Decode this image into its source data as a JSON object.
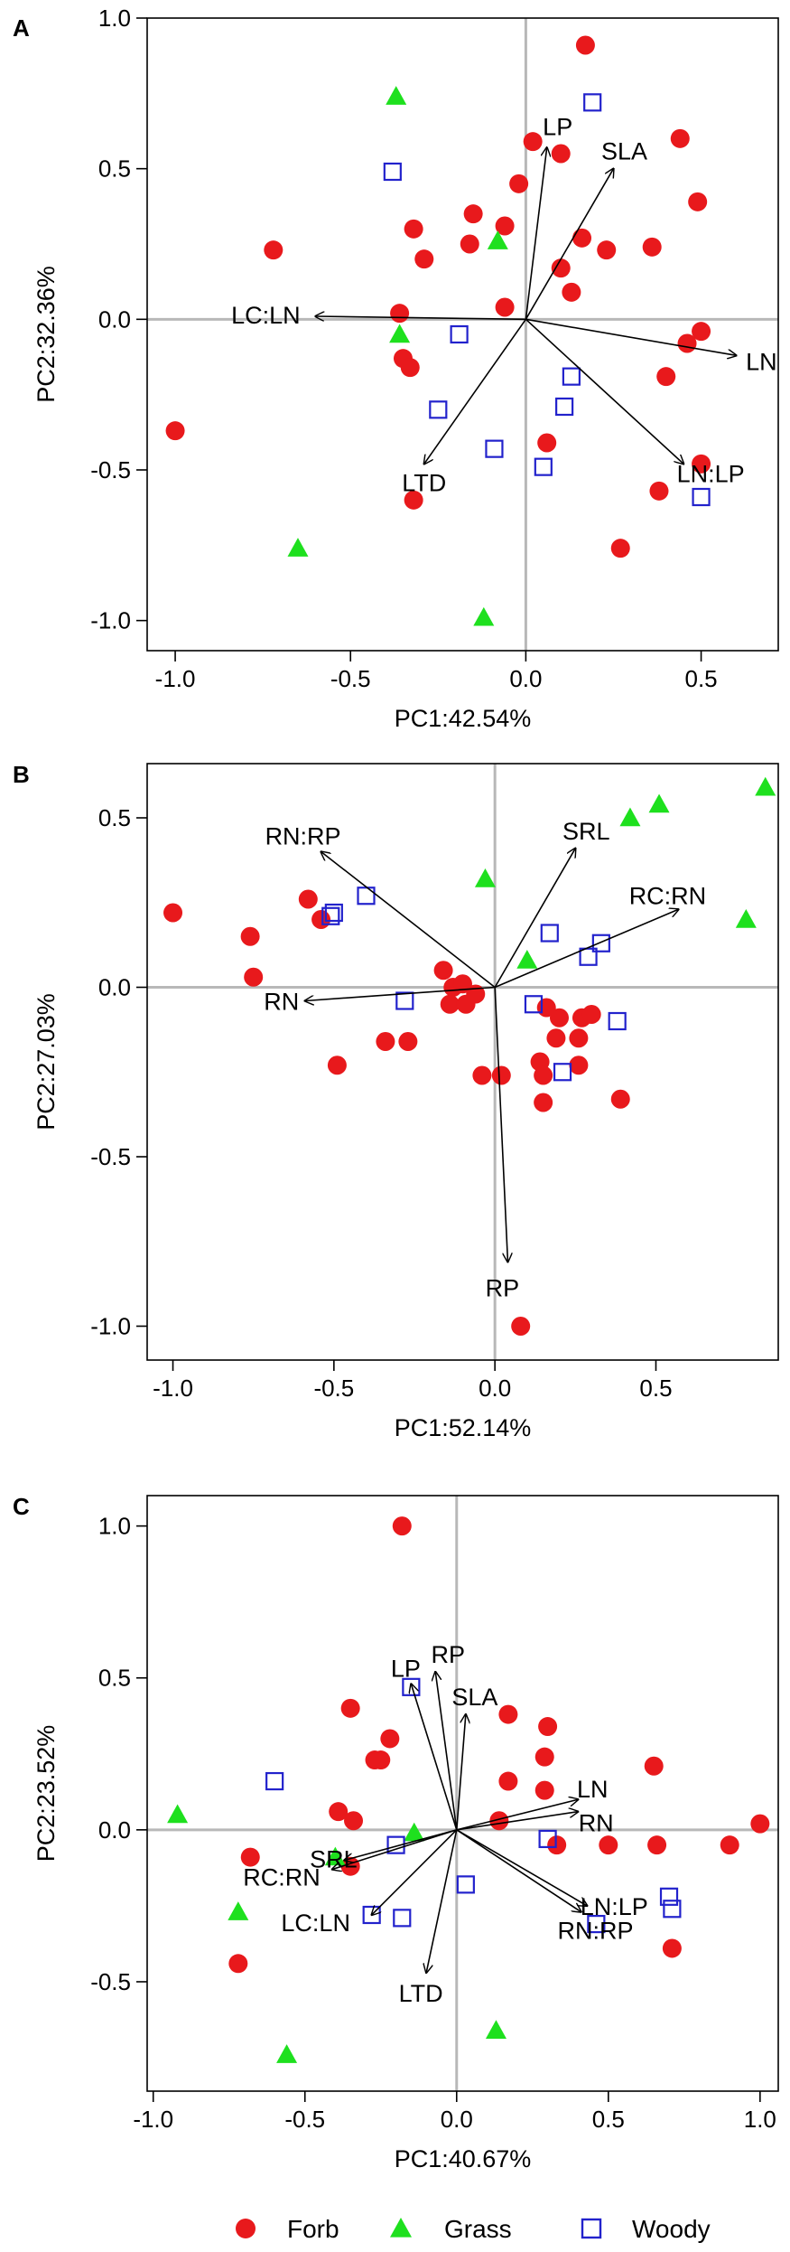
{
  "colors": {
    "forb": "#e8191c",
    "grass": "#1ee01e",
    "woody": "#2222cc",
    "refline": "#b8b8b8",
    "axis": "#000000"
  },
  "legend": [
    {
      "key": "forb",
      "label": "Forb",
      "marker": "circle"
    },
    {
      "key": "grass",
      "label": "Grass",
      "marker": "triangle"
    },
    {
      "key": "woody",
      "label": "Woody",
      "marker": "square"
    }
  ],
  "chart_data": [
    {
      "type": "scatter",
      "panel_label": "A",
      "title": "",
      "xlabel": "PC1:42.54%",
      "ylabel": "PC2:32.36%",
      "xlim": [
        -1.08,
        0.72
      ],
      "ylim": [
        -1.1,
        1.0
      ],
      "xticks": [
        "-1.0",
        "-0.5",
        "0.0",
        "0.5"
      ],
      "yticks": [
        "-1.0",
        "-0.5",
        "0.0",
        "0.5",
        "1.0"
      ],
      "series": [
        {
          "name": "Forb",
          "points": [
            [
              0.17,
              0.91
            ],
            [
              0.44,
              0.6
            ],
            [
              0.02,
              0.59
            ],
            [
              0.1,
              0.55
            ],
            [
              -0.02,
              0.45
            ],
            [
              0.49,
              0.39
            ],
            [
              -0.32,
              0.3
            ],
            [
              -0.15,
              0.35
            ],
            [
              -0.06,
              0.31
            ],
            [
              0.16,
              0.27
            ],
            [
              0.23,
              0.23
            ],
            [
              0.36,
              0.24
            ],
            [
              -0.16,
              0.25
            ],
            [
              -0.72,
              0.23
            ],
            [
              -0.29,
              0.2
            ],
            [
              0.1,
              0.17
            ],
            [
              0.13,
              0.09
            ],
            [
              -0.06,
              0.04
            ],
            [
              -0.36,
              0.02
            ],
            [
              0.5,
              -0.04
            ],
            [
              0.46,
              -0.08
            ],
            [
              -0.35,
              -0.13
            ],
            [
              -0.33,
              -0.16
            ],
            [
              0.4,
              -0.19
            ],
            [
              -1.0,
              -0.37
            ],
            [
              0.06,
              -0.41
            ],
            [
              0.5,
              -0.48
            ],
            [
              0.38,
              -0.57
            ],
            [
              -0.32,
              -0.6
            ],
            [
              0.27,
              -0.76
            ]
          ]
        },
        {
          "name": "Grass",
          "points": [
            [
              -0.37,
              0.74
            ],
            [
              -0.08,
              0.26
            ],
            [
              -0.36,
              -0.05
            ],
            [
              -0.65,
              -0.76
            ],
            [
              -0.12,
              -0.99
            ]
          ]
        },
        {
          "name": "Woody",
          "points": [
            [
              0.19,
              0.72
            ],
            [
              -0.38,
              0.49
            ],
            [
              -0.19,
              -0.05
            ],
            [
              0.13,
              -0.19
            ],
            [
              0.11,
              -0.29
            ],
            [
              -0.25,
              -0.3
            ],
            [
              -0.09,
              -0.43
            ],
            [
              0.05,
              -0.49
            ],
            [
              0.5,
              -0.59
            ]
          ]
        }
      ],
      "vectors": [
        {
          "label": "LP",
          "x": 0.06,
          "y": 0.57
        },
        {
          "label": "SLA",
          "x": 0.25,
          "y": 0.5
        },
        {
          "label": "LC:LN",
          "x": -0.6,
          "y": 0.01
        },
        {
          "label": "LN",
          "x": 0.6,
          "y": -0.12
        },
        {
          "label": "LTD",
          "x": -0.29,
          "y": -0.48
        },
        {
          "label": "LN:LP",
          "x": 0.45,
          "y": -0.48
        }
      ]
    },
    {
      "type": "scatter",
      "panel_label": "B",
      "title": "",
      "xlabel": "PC1:52.14%",
      "ylabel": "PC2:27.03%",
      "xlim": [
        -1.08,
        0.88
      ],
      "ylim": [
        -1.1,
        0.66
      ],
      "xticks": [
        "-1.0",
        "-0.5",
        "0.0",
        "0.5"
      ],
      "yticks": [
        "-1.0",
        "-0.5",
        "0.0",
        "0.5"
      ],
      "series": [
        {
          "name": "Forb",
          "points": [
            [
              -1.0,
              0.22
            ],
            [
              -0.58,
              0.26
            ],
            [
              -0.54,
              0.2
            ],
            [
              -0.76,
              0.15
            ],
            [
              -0.75,
              0.03
            ],
            [
              -0.16,
              0.05
            ],
            [
              -0.13,
              0.0
            ],
            [
              -0.1,
              0.01
            ],
            [
              -0.14,
              -0.05
            ],
            [
              -0.09,
              -0.05
            ],
            [
              -0.06,
              -0.02
            ],
            [
              -0.49,
              -0.23
            ],
            [
              -0.34,
              -0.16
            ],
            [
              -0.27,
              -0.16
            ],
            [
              -0.04,
              -0.26
            ],
            [
              0.02,
              -0.26
            ],
            [
              0.16,
              -0.06
            ],
            [
              0.2,
              -0.09
            ],
            [
              0.27,
              -0.09
            ],
            [
              0.3,
              -0.08
            ],
            [
              0.26,
              -0.15
            ],
            [
              0.19,
              -0.15
            ],
            [
              0.14,
              -0.22
            ],
            [
              0.15,
              -0.26
            ],
            [
              0.15,
              -0.34
            ],
            [
              0.26,
              -0.23
            ],
            [
              0.39,
              -0.33
            ],
            [
              0.08,
              -1.0
            ]
          ]
        },
        {
          "name": "Grass",
          "points": [
            [
              0.84,
              0.59
            ],
            [
              0.51,
              0.54
            ],
            [
              0.42,
              0.5
            ],
            [
              -0.03,
              0.32
            ],
            [
              0.78,
              0.2
            ],
            [
              0.1,
              0.08
            ]
          ]
        },
        {
          "name": "Woody",
          "points": [
            [
              -0.5,
              0.22
            ],
            [
              -0.51,
              0.21
            ],
            [
              -0.4,
              0.27
            ],
            [
              0.17,
              0.16
            ],
            [
              0.33,
              0.13
            ],
            [
              0.29,
              0.09
            ],
            [
              -0.28,
              -0.04
            ],
            [
              0.12,
              -0.05
            ],
            [
              0.38,
              -0.1
            ],
            [
              0.21,
              -0.25
            ]
          ]
        }
      ],
      "vectors": [
        {
          "label": "RN:RP",
          "x": -0.54,
          "y": 0.4
        },
        {
          "label": "SRL",
          "x": 0.25,
          "y": 0.41
        },
        {
          "label": "RC:RN",
          "x": 0.57,
          "y": 0.23
        },
        {
          "label": "RN",
          "x": -0.59,
          "y": -0.04
        },
        {
          "label": "RP",
          "x": 0.04,
          "y": -0.81
        }
      ]
    },
    {
      "type": "scatter",
      "panel_label": "C",
      "title": "",
      "xlabel": "PC1:40.67%",
      "ylabel": "PC2:23.52%",
      "xlim": [
        -1.02,
        1.06
      ],
      "ylim": [
        -0.86,
        1.1
      ],
      "xticks": [
        "-1.0",
        "-0.5",
        "0.0",
        "0.5",
        "1.0"
      ],
      "yticks": [
        "-0.5",
        "0.0",
        "0.5",
        "1.0"
      ],
      "series": [
        {
          "name": "Forb",
          "points": [
            [
              -0.18,
              1.0
            ],
            [
              -0.35,
              0.4
            ],
            [
              -0.22,
              0.3
            ],
            [
              -0.25,
              0.23
            ],
            [
              -0.27,
              0.23
            ],
            [
              0.17,
              0.38
            ],
            [
              0.3,
              0.34
            ],
            [
              0.29,
              0.24
            ],
            [
              0.17,
              0.16
            ],
            [
              0.29,
              0.13
            ],
            [
              0.65,
              0.21
            ],
            [
              0.14,
              0.03
            ],
            [
              -0.39,
              0.06
            ],
            [
              -0.34,
              0.03
            ],
            [
              0.33,
              -0.05
            ],
            [
              0.5,
              -0.05
            ],
            [
              0.66,
              -0.05
            ],
            [
              0.9,
              -0.05
            ],
            [
              1.0,
              0.02
            ],
            [
              -0.68,
              -0.09
            ],
            [
              -0.35,
              -0.12
            ],
            [
              -0.72,
              -0.44
            ],
            [
              0.71,
              -0.39
            ]
          ]
        },
        {
          "name": "Grass",
          "points": [
            [
              -0.92,
              0.05
            ],
            [
              -0.14,
              -0.01
            ],
            [
              -0.4,
              -0.09
            ],
            [
              -0.72,
              -0.27
            ],
            [
              -0.56,
              -0.74
            ],
            [
              0.13,
              -0.66
            ]
          ]
        },
        {
          "name": "Woody",
          "points": [
            [
              -0.15,
              0.47
            ],
            [
              -0.6,
              0.16
            ],
            [
              0.3,
              -0.03
            ],
            [
              -0.2,
              -0.05
            ],
            [
              -0.28,
              -0.28
            ],
            [
              -0.18,
              -0.29
            ],
            [
              0.03,
              -0.18
            ],
            [
              0.46,
              -0.31
            ],
            [
              0.7,
              -0.22
            ],
            [
              0.71,
              -0.26
            ]
          ]
        }
      ],
      "vectors": [
        {
          "label": "RP",
          "x": -0.07,
          "y": 0.52
        },
        {
          "label": "LP",
          "x": -0.15,
          "y": 0.48
        },
        {
          "label": "SLA",
          "x": 0.03,
          "y": 0.38
        },
        {
          "label": "LN",
          "x": 0.4,
          "y": 0.1
        },
        {
          "label": "RN",
          "x": 0.4,
          "y": 0.06
        },
        {
          "label": "SRL",
          "x": -0.37,
          "y": -0.1
        },
        {
          "label": "RC:RN",
          "x": -0.41,
          "y": -0.13
        },
        {
          "label": "LC:LN",
          "x": -0.28,
          "y": -0.28
        },
        {
          "label": "LTD",
          "x": -0.1,
          "y": -0.47
        },
        {
          "label": "LN:LP",
          "x": 0.43,
          "y": -0.25
        },
        {
          "label": "RN:RP",
          "x": 0.41,
          "y": -0.27
        }
      ]
    }
  ]
}
